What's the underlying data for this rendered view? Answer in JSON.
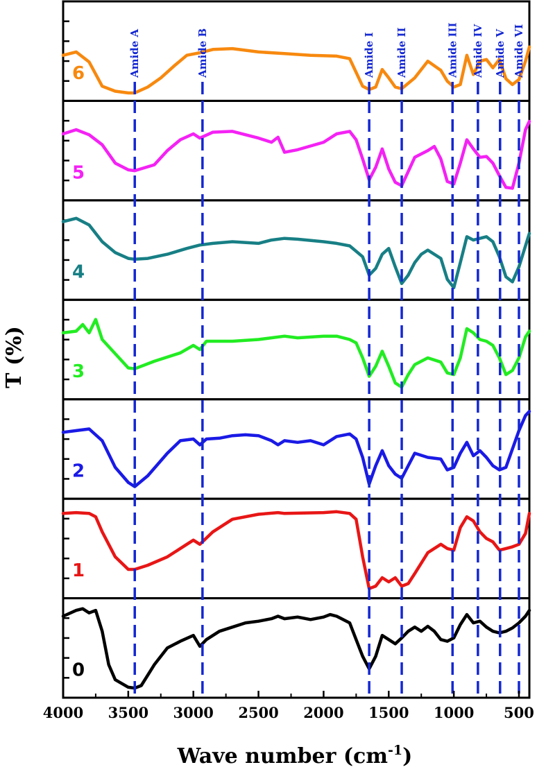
{
  "chart_data": {
    "type": "line",
    "xlabel": "Wave number (cm",
    "xlabel_sup": "-1",
    "xlabel_end": ")",
    "ylabel": "T (%)",
    "xlim": [
      4000,
      420
    ],
    "x_ticks": [
      4000,
      3500,
      3000,
      2500,
      2000,
      1500,
      1000,
      500
    ],
    "x_tick_labels": [
      "4000",
      "3500",
      "3000",
      "2500",
      "2000",
      "1500",
      "1000",
      "500"
    ],
    "stacked_panels": true,
    "grid": false,
    "amide_markers": [
      {
        "label": "Amide A",
        "x": 3450
      },
      {
        "label": "Amide B",
        "x": 2930
      },
      {
        "label": "Amide I",
        "x": 1650
      },
      {
        "label": "Amide II",
        "x": 1400
      },
      {
        "label": "Amide III",
        "x": 1010
      },
      {
        "label": "Amide IV",
        "x": 815
      },
      {
        "label": "Amide V",
        "x": 645
      },
      {
        "label": "Amide VI",
        "x": 500
      }
    ],
    "marker_color": "#1428d2",
    "series": [
      {
        "name": "6",
        "color": "#f7890f",
        "ylim": [
          0,
          1
        ],
        "x": [
          4000,
          3900,
          3800,
          3700,
          3600,
          3500,
          3450,
          3350,
          3250,
          3150,
          3050,
          2950,
          2850,
          2700,
          2500,
          2300,
          2100,
          1900,
          1800,
          1700,
          1650,
          1600,
          1550,
          1500,
          1450,
          1400,
          1300,
          1200,
          1100,
          1050,
          1000,
          950,
          900,
          850,
          800,
          750,
          700,
          650,
          600,
          550,
          500,
          450,
          420
        ],
        "y": [
          0.45,
          0.49,
          0.37,
          0.08,
          0.02,
          0.0,
          0.0,
          0.07,
          0.18,
          0.32,
          0.45,
          0.48,
          0.52,
          0.53,
          0.49,
          0.47,
          0.45,
          0.44,
          0.41,
          0.08,
          0.04,
          0.07,
          0.28,
          0.18,
          0.07,
          0.05,
          0.18,
          0.38,
          0.27,
          0.14,
          0.07,
          0.1,
          0.45,
          0.22,
          0.38,
          0.4,
          0.3,
          0.4,
          0.17,
          0.1,
          0.16,
          0.38,
          0.55
        ]
      },
      {
        "name": "5",
        "color": "#f422f4",
        "ylim": [
          0,
          1
        ],
        "x": [
          4000,
          3900,
          3800,
          3700,
          3600,
          3500,
          3450,
          3300,
          3200,
          3100,
          3000,
          2950,
          2850,
          2700,
          2500,
          2400,
          2350,
          2300,
          2200,
          2000,
          1900,
          1800,
          1750,
          1700,
          1650,
          1600,
          1550,
          1500,
          1450,
          1400,
          1350,
          1300,
          1200,
          1150,
          1100,
          1050,
          1000,
          950,
          900,
          850,
          800,
          750,
          700,
          650,
          600,
          550,
          500,
          450,
          420
        ],
        "y": [
          0.7,
          0.75,
          0.69,
          0.57,
          0.35,
          0.27,
          0.26,
          0.33,
          0.5,
          0.63,
          0.7,
          0.65,
          0.72,
          0.73,
          0.65,
          0.6,
          0.66,
          0.48,
          0.51,
          0.6,
          0.7,
          0.73,
          0.63,
          0.4,
          0.15,
          0.3,
          0.52,
          0.28,
          0.12,
          0.08,
          0.25,
          0.42,
          0.5,
          0.55,
          0.4,
          0.13,
          0.1,
          0.35,
          0.63,
          0.52,
          0.42,
          0.43,
          0.35,
          0.2,
          0.06,
          0.05,
          0.35,
          0.75,
          0.85
        ]
      },
      {
        "name": "4",
        "color": "#177f85",
        "ylim": [
          0,
          1
        ],
        "x": [
          4000,
          3900,
          3800,
          3700,
          3600,
          3500,
          3450,
          3350,
          3200,
          3050,
          2950,
          2850,
          2700,
          2500,
          2400,
          2300,
          2200,
          2000,
          1900,
          1800,
          1700,
          1650,
          1600,
          1550,
          1500,
          1450,
          1400,
          1350,
          1300,
          1250,
          1200,
          1100,
          1050,
          1000,
          950,
          900,
          850,
          800,
          750,
          700,
          650,
          600,
          550,
          500,
          450,
          420
        ],
        "y": [
          0.84,
          0.88,
          0.8,
          0.6,
          0.47,
          0.4,
          0.39,
          0.4,
          0.45,
          0.52,
          0.56,
          0.58,
          0.6,
          0.58,
          0.62,
          0.64,
          0.63,
          0.6,
          0.58,
          0.55,
          0.42,
          0.2,
          0.28,
          0.45,
          0.52,
          0.3,
          0.1,
          0.2,
          0.35,
          0.45,
          0.5,
          0.4,
          0.15,
          0.05,
          0.35,
          0.66,
          0.62,
          0.64,
          0.66,
          0.6,
          0.42,
          0.18,
          0.12,
          0.3,
          0.55,
          0.7
        ]
      },
      {
        "name": "3",
        "color": "#22ec22",
        "ylim": [
          0,
          1
        ],
        "x": [
          4000,
          3900,
          3850,
          3800,
          3750,
          3700,
          3600,
          3500,
          3450,
          3300,
          3100,
          3000,
          2950,
          2900,
          2700,
          2500,
          2300,
          2200,
          2000,
          1900,
          1800,
          1750,
          1700,
          1650,
          1600,
          1550,
          1500,
          1450,
          1400,
          1350,
          1300,
          1200,
          1100,
          1050,
          1000,
          950,
          900,
          850,
          800,
          750,
          700,
          650,
          600,
          550,
          500,
          450,
          420
        ],
        "y": [
          0.7,
          0.72,
          0.8,
          0.7,
          0.86,
          0.62,
          0.45,
          0.28,
          0.27,
          0.36,
          0.46,
          0.55,
          0.5,
          0.6,
          0.6,
          0.62,
          0.66,
          0.64,
          0.66,
          0.66,
          0.62,
          0.58,
          0.4,
          0.18,
          0.3,
          0.48,
          0.3,
          0.1,
          0.05,
          0.2,
          0.32,
          0.4,
          0.35,
          0.22,
          0.2,
          0.4,
          0.75,
          0.7,
          0.62,
          0.6,
          0.55,
          0.4,
          0.2,
          0.25,
          0.4,
          0.65,
          0.72
        ]
      },
      {
        "name": "2",
        "color": "#1a1ae6",
        "ylim": [
          0,
          1
        ],
        "x": [
          4000,
          3900,
          3800,
          3700,
          3600,
          3500,
          3450,
          3350,
          3200,
          3100,
          3000,
          2950,
          2900,
          2800,
          2700,
          2600,
          2500,
          2400,
          2350,
          2300,
          2200,
          2100,
          2000,
          1900,
          1800,
          1750,
          1700,
          1650,
          1600,
          1550,
          1500,
          1450,
          1400,
          1350,
          1300,
          1200,
          1100,
          1050,
          1000,
          950,
          900,
          850,
          800,
          750,
          700,
          650,
          600,
          550,
          500,
          450,
          420
        ],
        "y": [
          0.7,
          0.72,
          0.74,
          0.6,
          0.28,
          0.1,
          0.05,
          0.18,
          0.45,
          0.6,
          0.62,
          0.55,
          0.62,
          0.63,
          0.66,
          0.67,
          0.66,
          0.6,
          0.55,
          0.6,
          0.58,
          0.6,
          0.55,
          0.65,
          0.68,
          0.62,
          0.4,
          0.08,
          0.3,
          0.48,
          0.3,
          0.2,
          0.15,
          0.3,
          0.45,
          0.4,
          0.38,
          0.25,
          0.28,
          0.45,
          0.58,
          0.42,
          0.48,
          0.4,
          0.3,
          0.25,
          0.28,
          0.5,
          0.72,
          0.9,
          0.95
        ]
      },
      {
        "name": "1",
        "color": "#e81616",
        "ylim": [
          0,
          1
        ],
        "x": [
          4000,
          3900,
          3800,
          3750,
          3700,
          3600,
          3500,
          3450,
          3350,
          3200,
          3050,
          3000,
          2950,
          2850,
          2700,
          2500,
          2350,
          2300,
          2000,
          1900,
          1800,
          1750,
          1700,
          1650,
          1600,
          1550,
          1500,
          1450,
          1400,
          1350,
          1300,
          1200,
          1100,
          1050,
          1000,
          950,
          900,
          850,
          800,
          750,
          700,
          650,
          600,
          550,
          500,
          450,
          420
        ],
        "y": [
          0.92,
          0.93,
          0.92,
          0.88,
          0.7,
          0.4,
          0.25,
          0.25,
          0.3,
          0.4,
          0.55,
          0.6,
          0.55,
          0.7,
          0.85,
          0.91,
          0.93,
          0.92,
          0.93,
          0.94,
          0.92,
          0.85,
          0.4,
          0.02,
          0.05,
          0.15,
          0.1,
          0.15,
          0.05,
          0.08,
          0.2,
          0.45,
          0.55,
          0.5,
          0.48,
          0.75,
          0.88,
          0.83,
          0.7,
          0.62,
          0.58,
          0.48,
          0.5,
          0.52,
          0.55,
          0.68,
          0.92
        ]
      },
      {
        "name": "0",
        "color": "#000000",
        "ylim": [
          0,
          1
        ],
        "x": [
          4000,
          3900,
          3850,
          3800,
          3750,
          3700,
          3650,
          3600,
          3500,
          3450,
          3400,
          3300,
          3200,
          3100,
          3000,
          2950,
          2900,
          2800,
          2700,
          2600,
          2500,
          2400,
          2350,
          2300,
          2200,
          2100,
          2000,
          1950,
          1900,
          1800,
          1750,
          1700,
          1650,
          1600,
          1550,
          1500,
          1450,
          1400,
          1350,
          1300,
          1250,
          1200,
          1150,
          1100,
          1050,
          1000,
          950,
          900,
          850,
          800,
          750,
          700,
          650,
          600,
          550,
          500,
          450,
          420
        ],
        "y": [
          0.88,
          0.95,
          0.97,
          0.92,
          0.95,
          0.7,
          0.3,
          0.12,
          0.03,
          0.02,
          0.05,
          0.3,
          0.5,
          0.58,
          0.65,
          0.52,
          0.6,
          0.7,
          0.75,
          0.8,
          0.82,
          0.85,
          0.88,
          0.85,
          0.87,
          0.84,
          0.87,
          0.9,
          0.88,
          0.8,
          0.6,
          0.4,
          0.25,
          0.4,
          0.65,
          0.6,
          0.55,
          0.62,
          0.7,
          0.75,
          0.7,
          0.76,
          0.7,
          0.6,
          0.58,
          0.62,
          0.78,
          0.9,
          0.8,
          0.82,
          0.75,
          0.7,
          0.68,
          0.7,
          0.74,
          0.8,
          0.88,
          0.95
        ]
      }
    ]
  }
}
